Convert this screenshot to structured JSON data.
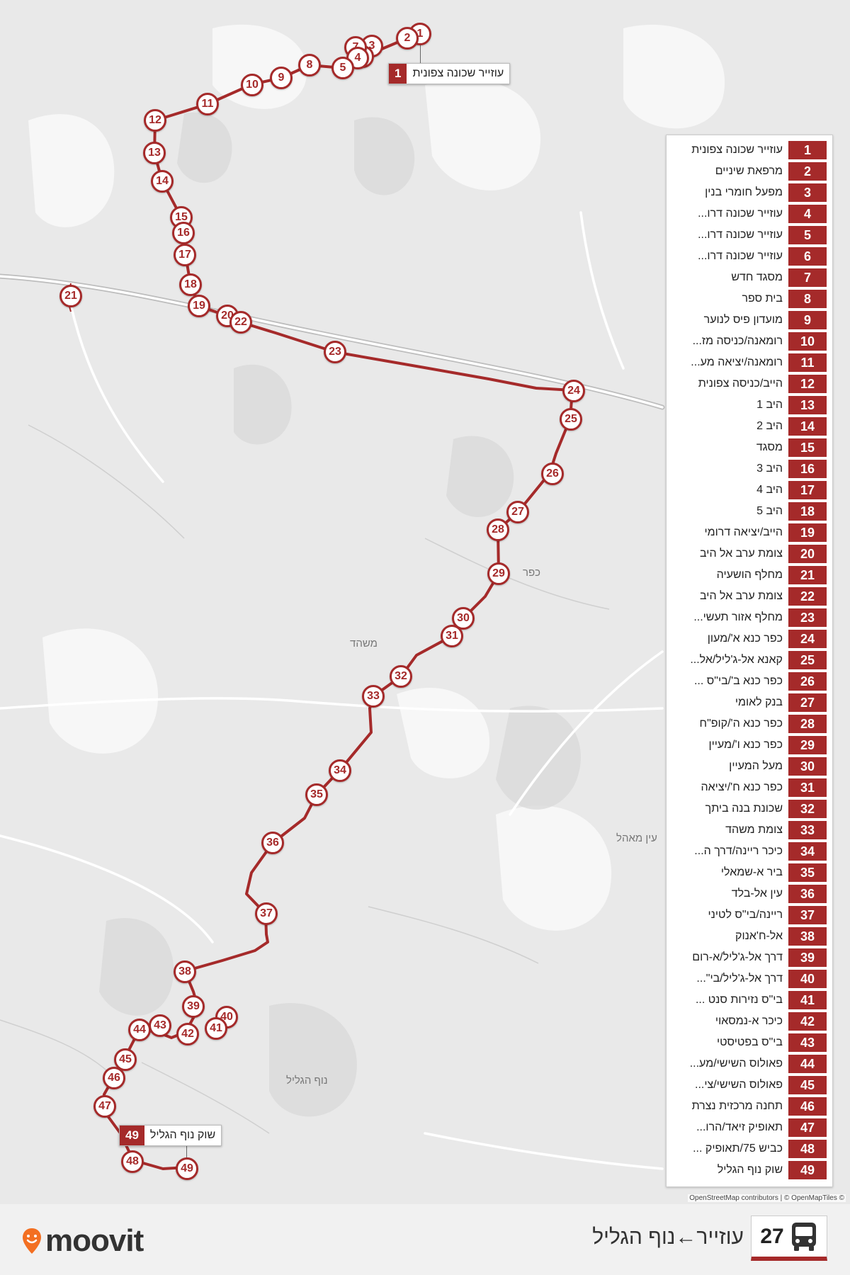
{
  "header": {
    "route_number": "27",
    "route_title": "עוזייר←נוף הגליל",
    "brand": "moovit",
    "bus_icon": "bus-icon"
  },
  "map": {
    "attribution": "OpenStreetMap contributors | © OpenMapTiles ©",
    "place_labels": [
      "כפר",
      "משהד",
      "עין מאהל",
      "נוף הגליל"
    ],
    "callout_start": {
      "number": "1",
      "name": "עוזייר שכונה צפונית"
    },
    "callout_end": {
      "number": "49",
      "name": "שוק נוף הגליל"
    },
    "route_color": "#a52a2a"
  },
  "stops": [
    {
      "n": "1",
      "name": "עוזייר שכונה צפונית"
    },
    {
      "n": "2",
      "name": "מרפאת שיניים"
    },
    {
      "n": "3",
      "name": "מפעל חומרי בנין"
    },
    {
      "n": "4",
      "name": "עוזייר שכונה דרו..."
    },
    {
      "n": "5",
      "name": "עוזייר שכונה דרו..."
    },
    {
      "n": "6",
      "name": "עוזייר שכונה דרו..."
    },
    {
      "n": "7",
      "name": "מסגד חדש"
    },
    {
      "n": "8",
      "name": "בית ספר"
    },
    {
      "n": "9",
      "name": "מועדון פיס לנוער"
    },
    {
      "n": "10",
      "name": "רומאנה/כניסה מז..."
    },
    {
      "n": "11",
      "name": "רומאנה/יציאה מע..."
    },
    {
      "n": "12",
      "name": "הייב/כניסה צפונית"
    },
    {
      "n": "13",
      "name": "היב 1"
    },
    {
      "n": "14",
      "name": "היב 2"
    },
    {
      "n": "15",
      "name": "מסגד"
    },
    {
      "n": "16",
      "name": "היב 3"
    },
    {
      "n": "17",
      "name": "היב 4"
    },
    {
      "n": "18",
      "name": "היב 5"
    },
    {
      "n": "19",
      "name": "הייב/יציאה דרומי"
    },
    {
      "n": "20",
      "name": "צומת ערב אל היב"
    },
    {
      "n": "21",
      "name": "מחלף הושעיה"
    },
    {
      "n": "22",
      "name": "צומת ערב אל היב"
    },
    {
      "n": "23",
      "name": "מחלף אזור תעשי..."
    },
    {
      "n": "24",
      "name": "כפר כנא א'/מעון"
    },
    {
      "n": "25",
      "name": "קאנא אל-ג'ליל/אל..."
    },
    {
      "n": "26",
      "name": "כפר כנא ב'/בי\"ס ..."
    },
    {
      "n": "27",
      "name": "בנק לאומי"
    },
    {
      "n": "28",
      "name": "כפר כנא ה'/קופ\"ח"
    },
    {
      "n": "29",
      "name": "כפר כנא ו'/מעיין"
    },
    {
      "n": "30",
      "name": "מעל המעיין"
    },
    {
      "n": "31",
      "name": "כפר כנא ח'/יציאה"
    },
    {
      "n": "32",
      "name": "שכונת בנה ביתך"
    },
    {
      "n": "33",
      "name": "צומת משהד"
    },
    {
      "n": "34",
      "name": "כיכר ריינה/דרך ה..."
    },
    {
      "n": "35",
      "name": "ביר א-שמאלי"
    },
    {
      "n": "36",
      "name": "עין אל-בלד"
    },
    {
      "n": "37",
      "name": "ריינה/בי\"ס לטיני"
    },
    {
      "n": "38",
      "name": "אל-ח'אנוק"
    },
    {
      "n": "39",
      "name": "דרך אל-ג'ליל/א-רום"
    },
    {
      "n": "40",
      "name": "דרך אל-ג'ליל/בי\"..."
    },
    {
      "n": "41",
      "name": "בי\"ס נזירות סנט ..."
    },
    {
      "n": "42",
      "name": "כיכר א-נמסאוי"
    },
    {
      "n": "43",
      "name": "בי\"ס בפטיסטי"
    },
    {
      "n": "44",
      "name": "פאולוס השישי/מע..."
    },
    {
      "n": "45",
      "name": "פאולוס השישי/צי..."
    },
    {
      "n": "46",
      "name": "תחנה מרכזית נצרת"
    },
    {
      "n": "47",
      "name": "תאופיק זיאד/הרו..."
    },
    {
      "n": "48",
      "name": "כביש 75/תאופיק ..."
    },
    {
      "n": "49",
      "name": "שוק נוף הגליל"
    }
  ]
}
